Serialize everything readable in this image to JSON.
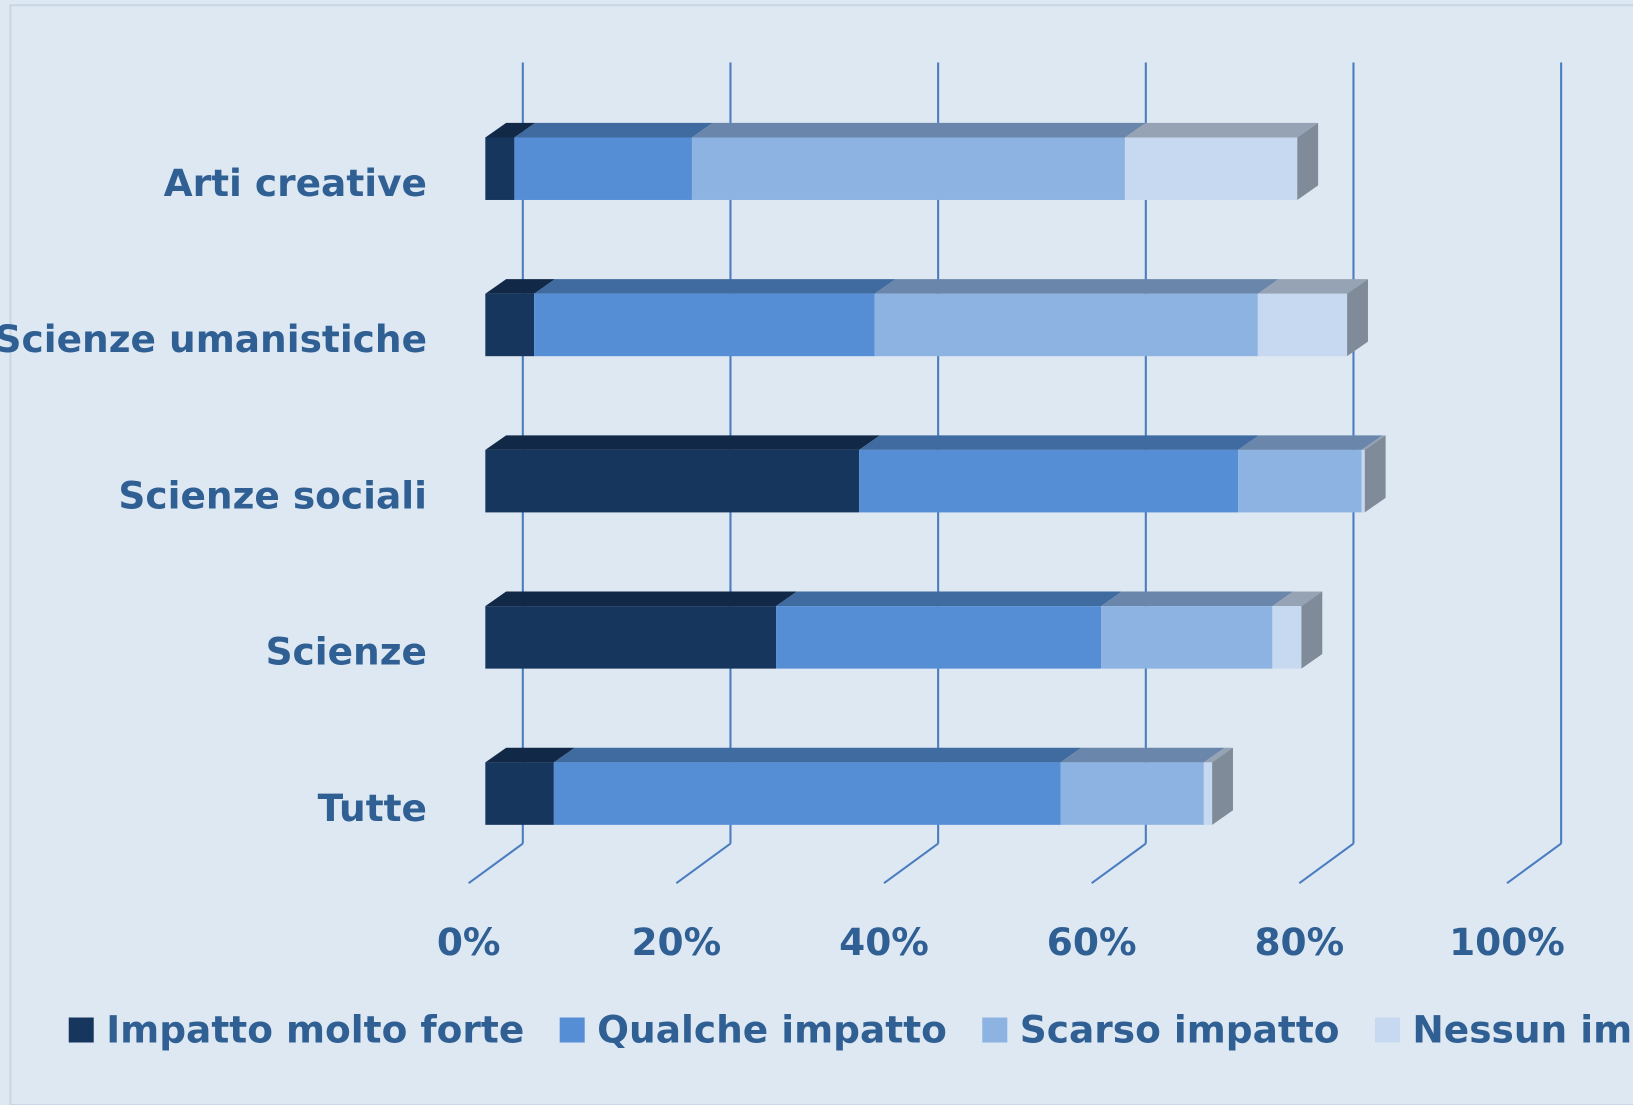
{
  "chart_data": {
    "type": "bar3d_stacked_horizontal",
    "categories": [
      "Arti creative",
      "Scienze umanistiche",
      "Scienze sociali",
      "Scienze",
      "Tutte"
    ],
    "series": [
      {
        "name": "Impatto molto forte",
        "color": "#17365d",
        "values": [
          2.8,
          4.7,
          36.0,
          28.0,
          6.6
        ]
      },
      {
        "name": "Qualche impatto",
        "color": "#558ed5",
        "values": [
          17.1,
          32.8,
          36.5,
          31.3,
          48.8
        ]
      },
      {
        "name": "Scarso impatto",
        "color": "#8db3e2",
        "values": [
          41.7,
          36.9,
          11.9,
          16.5,
          13.8
        ]
      },
      {
        "name": "Nessun impatto",
        "color": "#c6d9f1",
        "values": [
          16.6,
          8.6,
          0.3,
          2.8,
          0.8
        ]
      }
    ],
    "xlim": [
      0,
      100
    ],
    "xticks": [
      {
        "value": 0,
        "label": "0%"
      },
      {
        "value": 20,
        "label": "20%"
      },
      {
        "value": 40,
        "label": "40%"
      },
      {
        "value": 60,
        "label": "60%"
      },
      {
        "value": 80,
        "label": "80%"
      },
      {
        "value": 100,
        "label": "100%"
      }
    ],
    "grid": true,
    "legend": "bottom"
  }
}
